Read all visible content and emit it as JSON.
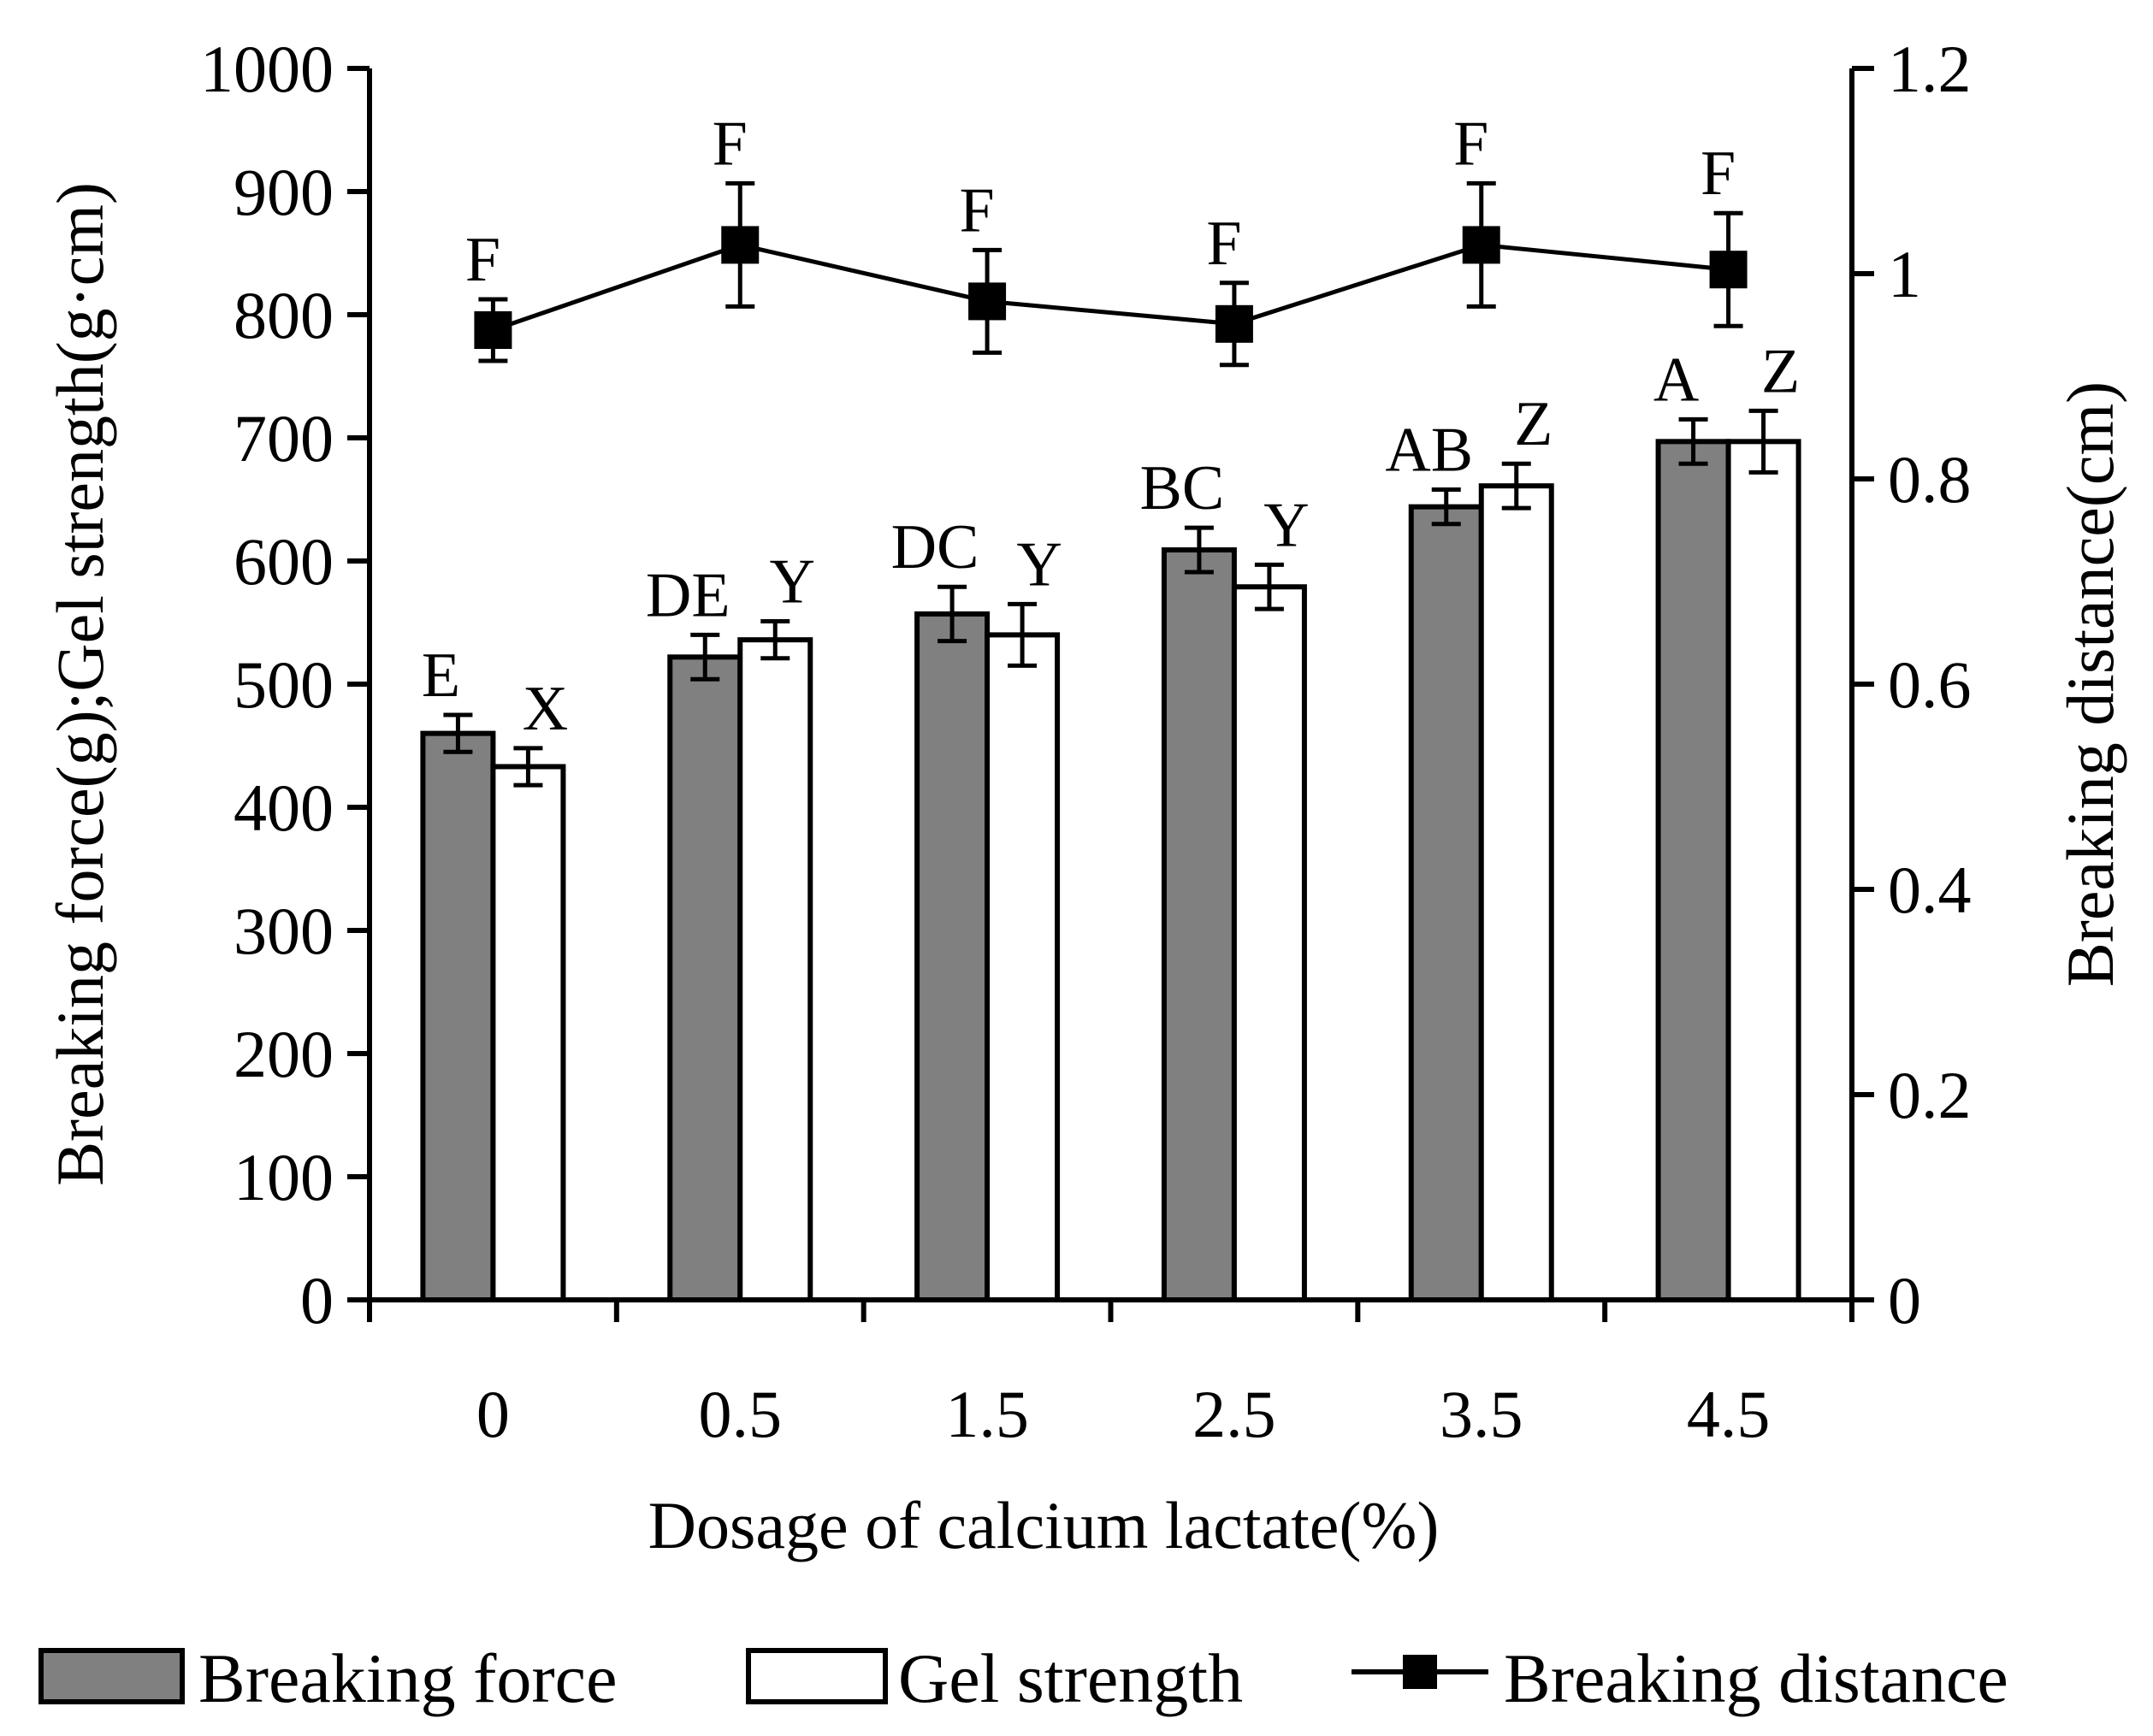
{
  "chart_data": {
    "type": "bar+line",
    "categories": [
      "0",
      "0.5",
      "1.5",
      "2.5",
      "3.5",
      "4.5"
    ],
    "xlabel": "Dosage of calcium lactate(%)",
    "ylabel": "Breaking force(g);Gel strength(g·cm)",
    "y2label": "Breaking distance(cm)",
    "ylim": [
      0,
      1000
    ],
    "y2lim": [
      0,
      1.2
    ],
    "yticks": [
      "0",
      "100",
      "200",
      "300",
      "400",
      "500",
      "600",
      "700",
      "800",
      "900",
      "1000"
    ],
    "y2ticks": [
      "0",
      "0.2",
      "0.4",
      "0.6",
      "0.8",
      "1",
      "1.2"
    ],
    "series": [
      {
        "name": "Breaking force",
        "kind": "bar",
        "axis": "left",
        "color": "#808080",
        "values": [
          460,
          522,
          557,
          609,
          644,
          697
        ],
        "errors": [
          15,
          18,
          22,
          18,
          14,
          18
        ],
        "labels": [
          "E",
          "DE",
          "DC",
          "BC",
          "AB",
          "A"
        ]
      },
      {
        "name": "Gel strength",
        "kind": "bar",
        "axis": "left",
        "color": "#ffffff",
        "values": [
          433,
          536,
          540,
          579,
          661,
          697
        ],
        "errors": [
          15,
          15,
          25,
          18,
          18,
          25
        ],
        "labels": [
          "X",
          "Y",
          "Y",
          "Y",
          "Z",
          "Z"
        ]
      },
      {
        "name": "Breaking distance",
        "kind": "line",
        "axis": "right",
        "color": "#000000",
        "values": [
          0.945,
          1.028,
          0.973,
          0.951,
          1.028,
          1.004
        ],
        "errors": [
          0.03,
          0.06,
          0.05,
          0.04,
          0.06,
          0.055
        ],
        "labels": [
          "F",
          "F",
          "F",
          "F",
          "F",
          "F"
        ]
      }
    ],
    "legend": [
      "Breaking force",
      "Gel strength",
      "Breaking distance"
    ],
    "legend_position": "bottom",
    "grid": false
  }
}
